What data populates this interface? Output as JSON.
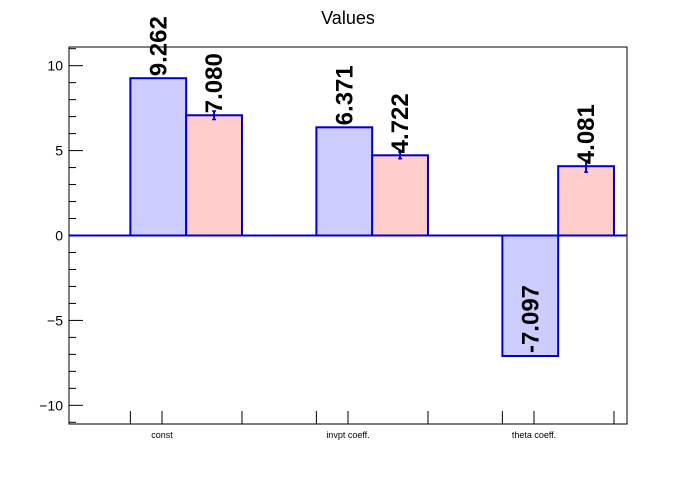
{
  "chart_data": {
    "type": "bar",
    "title": "Values",
    "categories": [
      "const",
      "invpt coeff.",
      "theta coeff."
    ],
    "series": [
      {
        "values": [
          9.262,
          6.371,
          -7.097
        ],
        "labels": [
          "9.262",
          "6.371",
          "-7.097"
        ],
        "errors": [
          0,
          0,
          0
        ],
        "fill": "#ccccff",
        "stroke": "#0000cc"
      },
      {
        "values": [
          7.08,
          4.722,
          4.081
        ],
        "labels": [
          "7.080",
          "4.722",
          "4.081"
        ],
        "errors": [
          0.25,
          0.2,
          0.35
        ],
        "fill": "#ffcccc",
        "stroke": "#0000cc"
      }
    ],
    "ylim": [
      -11.1,
      11.1
    ],
    "yticks": [
      -10,
      -5,
      0,
      5,
      10
    ],
    "ytick_labels": [
      "−10",
      "−5",
      "0",
      "5",
      "10"
    ],
    "xlabel": "",
    "ylabel": "",
    "grid": false,
    "legend": "none"
  }
}
